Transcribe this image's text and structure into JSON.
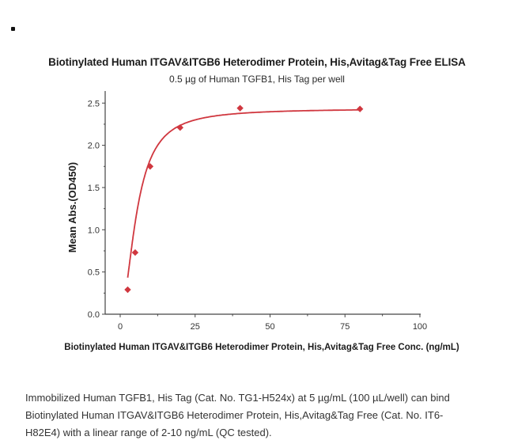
{
  "bullet": "•",
  "chart": {
    "title": "Biotinylated Human ITGAV&ITGB6 Heterodimer Protein, His,Avitag&Tag Free ELISA",
    "subtitle": "0.5 µg of Human TGFB1, His Tag per well",
    "xlabel": "Biotinylated Human ITGAV&ITGB6 Heterodimer Protein, His,Avitag&Tag Free Conc. (ng/mL)",
    "ylabel": "Mean Abs.(OD450)"
  },
  "caption": {
    "lines": [
      "Immobilized Human TGFB1, His Tag (Cat. No. TG1-H524x) at 5 µg/mL (100 µL/well) can bind",
      "Biotinylated Human ITGAV&ITGB6 Heterodimer Protein, His,Avitag&Tag Free (Cat. No. IT6-",
      "H82E4) with a linear range of 2-10 ng/mL (QC tested)."
    ]
  },
  "colors": {
    "series": "#d0373f",
    "axis": "#444444"
  },
  "chart_data": {
    "type": "scatter",
    "title": "Biotinylated Human ITGAV&ITGB6 Heterodimer Protein, His,Avitag&Tag Free ELISA",
    "subtitle": "0.5 µg of Human TGFB1, His Tag per well",
    "xlabel": "Biotinylated Human ITGAV&ITGB6 Heterodimer Protein, His,Avitag&Tag Free Conc. (ng/mL)",
    "ylabel": "Mean Abs.(OD450)",
    "xlim": [
      -5,
      100
    ],
    "ylim": [
      0,
      2.65
    ],
    "xticks": [
      0,
      25,
      50,
      75,
      100
    ],
    "yticks": [
      0.0,
      0.5,
      1.0,
      1.5,
      2.0,
      2.5
    ],
    "grid": false,
    "legend": null,
    "series": [
      {
        "name": "ELISA",
        "marker": "diamond",
        "fit": "4-parameter logistic curve",
        "x": [
          2.5,
          5,
          10,
          20,
          40,
          80
        ],
        "y": [
          0.29,
          0.73,
          1.75,
          2.21,
          2.44,
          2.43
        ]
      }
    ]
  }
}
